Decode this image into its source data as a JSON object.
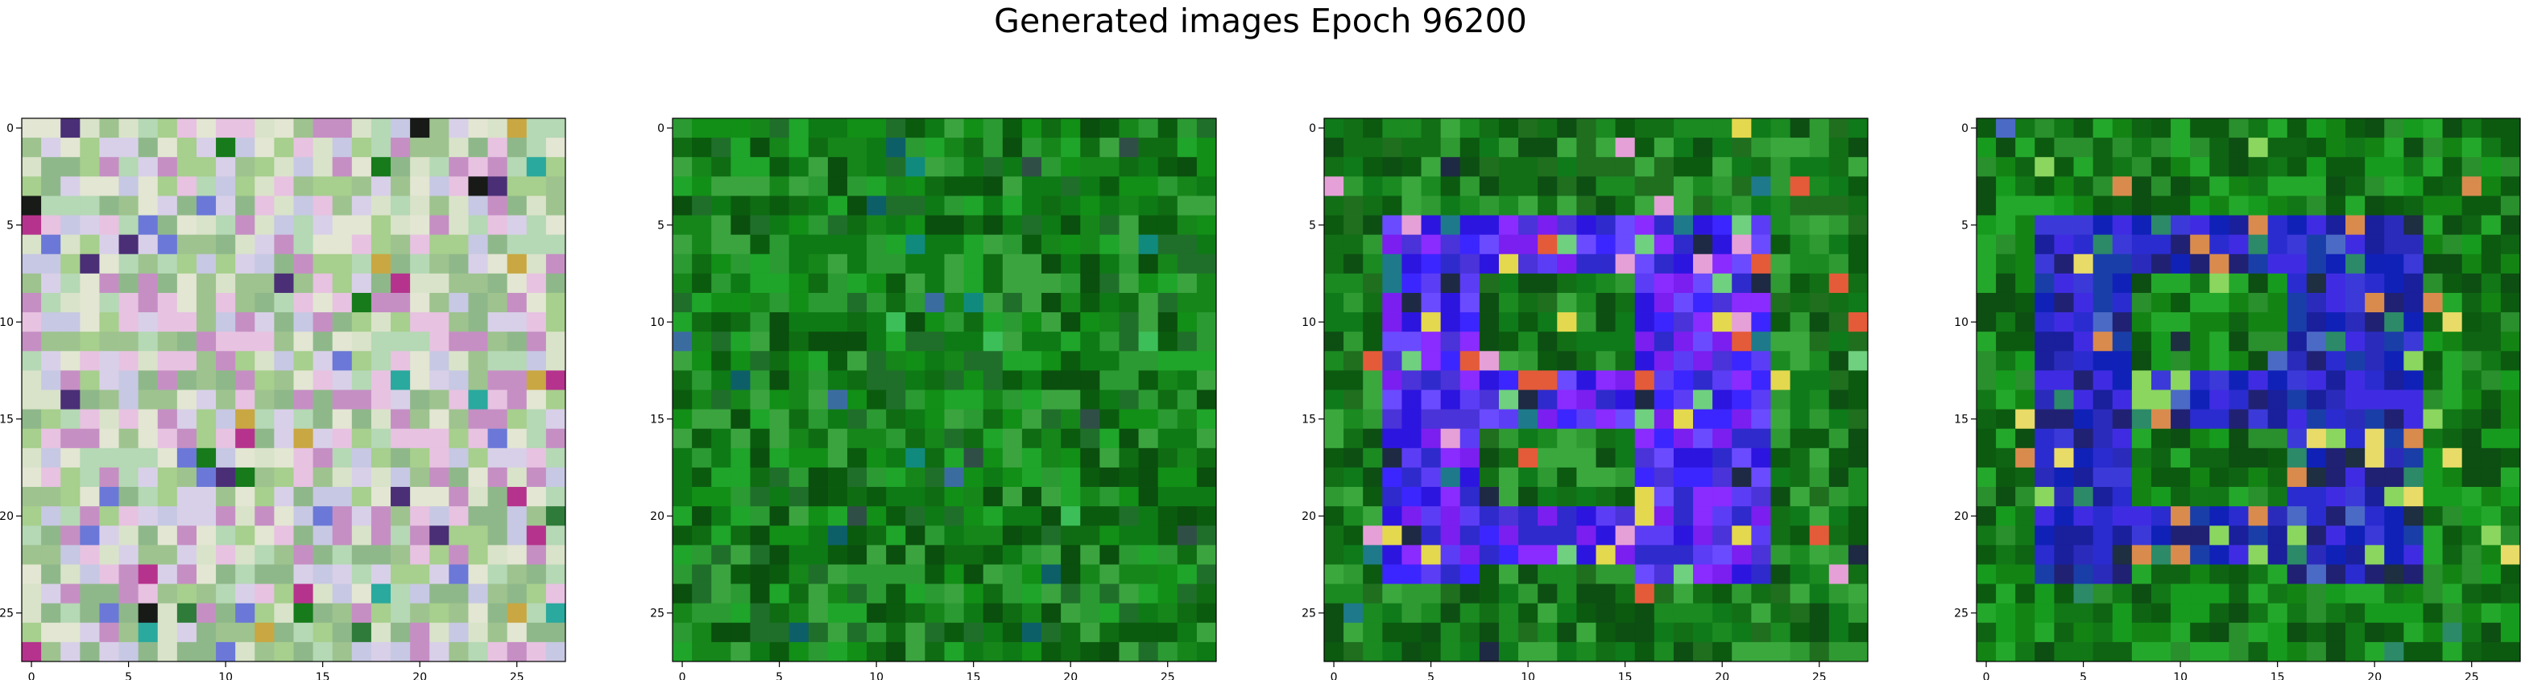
{
  "figure": {
    "title": "Generated images Epoch 96200"
  },
  "chart_data": [
    {
      "type": "heatmap",
      "name": "generated-image-1",
      "grid_size": 28,
      "xlim": [
        -0.5,
        27.5
      ],
      "ylim": [
        27.5,
        -0.5
      ],
      "xticks": [
        0,
        5,
        10,
        15,
        20,
        25
      ],
      "yticks": [
        0,
        5,
        10,
        15,
        20,
        25
      ],
      "xtick_labels": [
        "0",
        "5",
        "10",
        "15",
        "20",
        "25"
      ],
      "ytick_labels": [
        "0",
        "5",
        "10",
        "15",
        "20",
        "25"
      ],
      "palette": [
        "#a7cf8d",
        "#d9e3c9",
        "#c7c8e3",
        "#e7c2e1",
        "#8fb88a",
        "#b5d8b5",
        "#d8d0e8",
        "#9ec38f",
        "#e2e6d2",
        "#c58fc4"
      ],
      "accent_palette": [
        "#171a17",
        "#b5338d",
        "#2aa99e",
        "#4a2f76",
        "#c9a742",
        "#177a1b",
        "#6b78d8",
        "#2f7b39"
      ]
    },
    {
      "type": "heatmap",
      "name": "generated-image-2",
      "grid_size": 28,
      "xlim": [
        -0.5,
        27.5
      ],
      "ylim": [
        27.5,
        -0.5
      ],
      "xticks": [
        0,
        5,
        10,
        15,
        20,
        25
      ],
      "yticks": [
        0,
        5,
        10,
        15,
        20,
        25
      ],
      "xtick_labels": [
        "0",
        "5",
        "10",
        "15",
        "20",
        "25"
      ],
      "ytick_labels": [
        "0",
        "5",
        "10",
        "15",
        "20",
        "25"
      ],
      "palette": [
        "#0f6c12",
        "#128f16",
        "#0b5b0f",
        "#1fa52a",
        "#16861a",
        "#2b9a32",
        "#0e7a15",
        "#3ba43f",
        "#0a4f0d",
        "#1f6f2a"
      ],
      "accent_palette": [
        "#0d5f67",
        "#3b6ca0",
        "#118a7e",
        "#2f4f46",
        "#3cbf58"
      ]
    },
    {
      "type": "heatmap",
      "name": "generated-image-3",
      "grid_size": 28,
      "xlim": [
        -0.5,
        27.5
      ],
      "ylim": [
        27.5,
        -0.5
      ],
      "xticks": [
        0,
        5,
        10,
        15,
        20,
        25
      ],
      "yticks": [
        0,
        5,
        10,
        15,
        20,
        25
      ],
      "xtick_labels": [
        "0",
        "5",
        "10",
        "15",
        "20",
        "25"
      ],
      "ytick_labels": [
        "0",
        "5",
        "10",
        "15",
        "20",
        "25"
      ],
      "background_palette": [
        "#126f15",
        "#1a8a21",
        "#0b5a10",
        "#2f9a32",
        "#0f7a1a",
        "#3ba83d",
        "#1f6f1f",
        "#0d4f13"
      ],
      "pattern_palette": [
        "#3c26ff",
        "#5c3df6",
        "#2d15e0",
        "#8a2bff",
        "#4a33d8",
        "#6a4bff",
        "#2f2acc",
        "#7a1ff0"
      ],
      "accent_palette": [
        "#e5a0d7",
        "#e45b39",
        "#e4d84f",
        "#6fd07f",
        "#1e2a43",
        "#1e7a8a"
      ]
    },
    {
      "type": "heatmap",
      "name": "generated-image-4",
      "grid_size": 28,
      "xlim": [
        -0.5,
        27.5
      ],
      "ylim": [
        27.5,
        -0.5
      ],
      "xticks": [
        0,
        5,
        10,
        15,
        20,
        25
      ],
      "yticks": [
        0,
        5,
        10,
        15,
        20,
        25
      ],
      "xtick_labels": [
        "0",
        "5",
        "10",
        "15",
        "20",
        "25"
      ],
      "ytick_labels": [
        "0",
        "5",
        "10",
        "15",
        "20",
        "25"
      ],
      "background_palette": [
        "#127716",
        "#179b1e",
        "#0f6413",
        "#24a82b",
        "#0c5a10",
        "#2a8f2d",
        "#138414",
        "#0d4e12"
      ],
      "pattern_palette": [
        "#1a1f9c",
        "#2a2ccf",
        "#1021b8",
        "#3b3ad8",
        "#202173",
        "#3f2ce2",
        "#1a3ea8",
        "#2b2bbb"
      ],
      "accent_palette": [
        "#d98b4e",
        "#e8db67",
        "#8bd65f",
        "#4b6ac6",
        "#1d2f40",
        "#2c8a68"
      ]
    }
  ]
}
